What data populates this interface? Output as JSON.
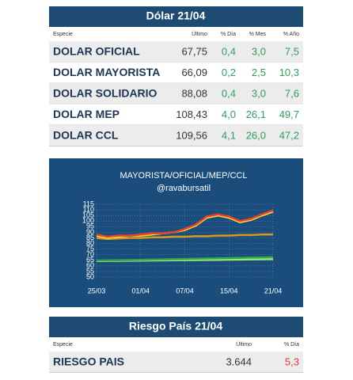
{
  "dolar": {
    "title": "Dólar 21/04",
    "columns": [
      "Especie",
      "Último",
      "% Día",
      "% Mes",
      "% Año"
    ],
    "rows": [
      [
        "DOLAR OFICIAL",
        "67,75",
        "0,4",
        "3,0",
        "7,5"
      ],
      [
        "DOLAR MAYORISTA",
        "66,09",
        "0,2",
        "2,5",
        "10,3"
      ],
      [
        "DOLAR SOLIDARIO",
        "88,08",
        "0,4",
        "3,0",
        "7,6"
      ],
      [
        "DOLAR MEP",
        "108,43",
        "4,0",
        "26,1",
        "49,7"
      ],
      [
        "DOLAR CCL",
        "109,56",
        "4,1",
        "26,0",
        "47,2"
      ]
    ]
  },
  "chart_data": {
    "type": "line",
    "title": "MAYORISTA/OFICIAL/MEP/CCL",
    "subtitle": "@ravabursatil",
    "categories": [
      "25/03",
      null,
      null,
      null,
      "01/04",
      null,
      null,
      null,
      "07/04",
      null,
      null,
      null,
      "15/04",
      null,
      null,
      null,
      "21/04"
    ],
    "ylim": [
      50,
      115
    ],
    "yticks": [
      50,
      55,
      60,
      65,
      70,
      75,
      80,
      85,
      90,
      95,
      100,
      105,
      110,
      115
    ],
    "grid": true,
    "series": [
      {
        "color": "#9be87a",
        "values": [
          64.3,
          64.4,
          64.5,
          64.6,
          64.7,
          64.8,
          64.9,
          65,
          65.1,
          65.2,
          65.3,
          65.4,
          65.5,
          65.6,
          65.8,
          65.9,
          66.09
        ]
      },
      {
        "color": "#2fa84f",
        "values": [
          64.8,
          64.9,
          65,
          65.2,
          65.4,
          65.6,
          65.8,
          66,
          66.2,
          66.4,
          66.6,
          66.8,
          67,
          67.2,
          67.4,
          67.6,
          67.75
        ]
      },
      {
        "color": "#d99a1a",
        "values": [
          85,
          84,
          84.5,
          85,
          85,
          85.5,
          85.5,
          86,
          86,
          86.5,
          86.5,
          87,
          87,
          87.5,
          87.5,
          88,
          88.08
        ]
      },
      {
        "color": "#f2e33a",
        "values": [
          87,
          85,
          86,
          87,
          87,
          88,
          89,
          90,
          92,
          96,
          103,
          105,
          103,
          99,
          101,
          105,
          108.43
        ]
      },
      {
        "color": "#e8412c",
        "values": [
          88,
          86,
          87,
          87,
          88,
          89,
          89,
          90,
          93,
          97,
          104,
          106,
          104,
          100,
          102,
          106,
          109.56
        ]
      }
    ]
  },
  "riesgo": {
    "title": "Riesgo País 21/04",
    "columns": [
      "Especie",
      "Último",
      "% Día"
    ],
    "rows": [
      [
        "RIESGO PAIS",
        "3.644",
        "5,3"
      ]
    ]
  }
}
